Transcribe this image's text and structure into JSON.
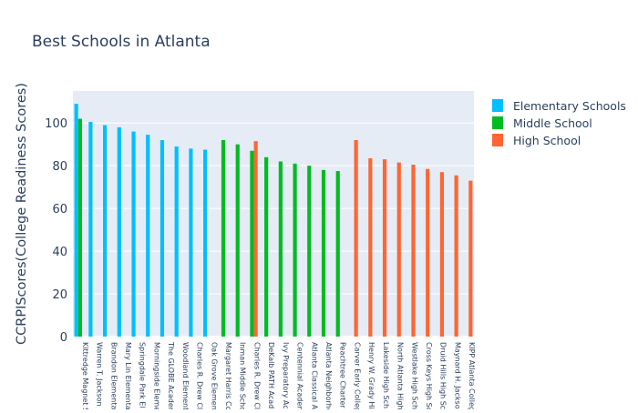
{
  "chart_data": {
    "type": "bar",
    "title": "Best Schools in Atlanta",
    "ylabel": "CCRPIScores(College Readiness Scores)",
    "xlabel": "",
    "ylim": [
      0,
      115
    ],
    "yticks": [
      0,
      20,
      40,
      60,
      80,
      100
    ],
    "grid": true,
    "legend_position": "top-right",
    "categories": [
      "Kittredge Magnet S",
      "Warren T. Jackson",
      "Brandon Elementa",
      "Mary Lin Elementa",
      "Springdale Park El",
      "Morningside Eleme",
      "The GLOBE Acader",
      "Woodland Element",
      "Charles R. Drew Cl",
      "Oak Grove Elemen",
      "Margaret Harris Co",
      "Inman Middle Scho",
      "Charles R. Drew Cl",
      "DeKalb PATH Acad",
      "Ivy Preparatory Ac",
      "Centennial Acaden",
      "Atlanta Classical A",
      "Atlanta Neighborho",
      "Peachtree Charter",
      "Carver Early Colleg",
      "Henry W. Grady Hi",
      "Lakeside High Sch",
      "North Atlanta High",
      "Westlake High Sch",
      "Cross Keys High Sc",
      "Druid Hills High Sc",
      "Maynard H. Jackso",
      "KIPP Atlanta Colleg"
    ],
    "series": [
      {
        "name": "Elementary Schools",
        "color": "#00BFFF",
        "values": [
          109,
          100.5,
          99,
          98,
          96,
          94.5,
          92,
          89,
          88,
          87.5,
          null,
          null,
          null,
          null,
          null,
          null,
          null,
          null,
          null,
          null,
          null,
          null,
          null,
          null,
          null,
          null,
          null,
          null
        ]
      },
      {
        "name": "Middle School",
        "color": "#00BB22",
        "values": [
          102,
          null,
          null,
          null,
          null,
          null,
          null,
          null,
          null,
          null,
          92,
          90,
          87,
          84,
          82,
          81,
          80,
          78,
          77.5,
          null,
          null,
          null,
          null,
          null,
          null,
          null,
          null,
          null
        ]
      },
      {
        "name": "High School",
        "color": "#FF6633",
        "values": [
          null,
          null,
          null,
          null,
          null,
          null,
          null,
          null,
          null,
          null,
          null,
          null,
          91.5,
          null,
          null,
          null,
          null,
          null,
          null,
          92,
          83.5,
          83,
          81.5,
          80.5,
          78.5,
          77,
          75.5,
          73
        ]
      }
    ]
  }
}
